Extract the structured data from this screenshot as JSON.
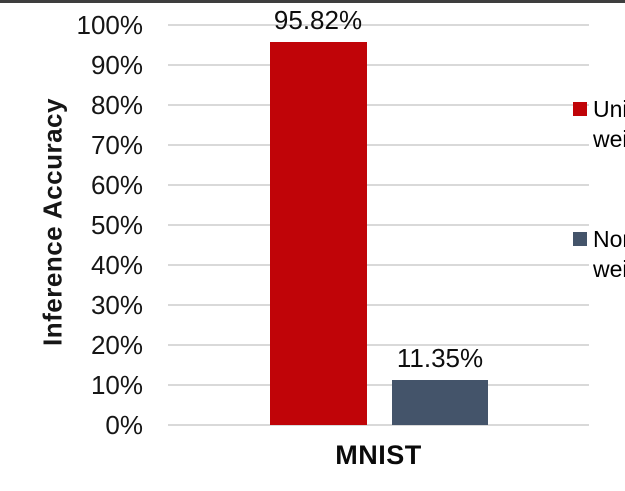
{
  "chart_data": {
    "type": "bar",
    "title": "",
    "categories": [
      "MNIST"
    ],
    "series": [
      {
        "name": "Unitary weights",
        "values": [
          95.82
        ],
        "data_labels": [
          "95.82%"
        ],
        "color": "#c00408"
      },
      {
        "name": "Non-unitary weights",
        "values": [
          11.35
        ],
        "data_labels": [
          "11.35%"
        ],
        "color": "#44546a"
      }
    ],
    "xlabel": "",
    "ylabel": "Inference Accuracy",
    "ylim": [
      0,
      100
    ],
    "ytick_step": 10,
    "ytick_labels": [
      "0%",
      "10%",
      "20%",
      "30%",
      "40%",
      "50%",
      "60%",
      "70%",
      "80%",
      "90%",
      "100%"
    ],
    "grid": true,
    "legend": {
      "position": "right-inside",
      "entries": [
        {
          "label": "Unitary weights",
          "color": "#c00408"
        },
        {
          "label": "Non-unitary weights",
          "color": "#44546a"
        }
      ]
    }
  },
  "colors": {
    "bar_unitary": "#c00408",
    "bar_non_unitary": "#44546a",
    "gridline": "#d9d9d9",
    "text": "#161616",
    "top_edge": "#3e3e3e"
  }
}
